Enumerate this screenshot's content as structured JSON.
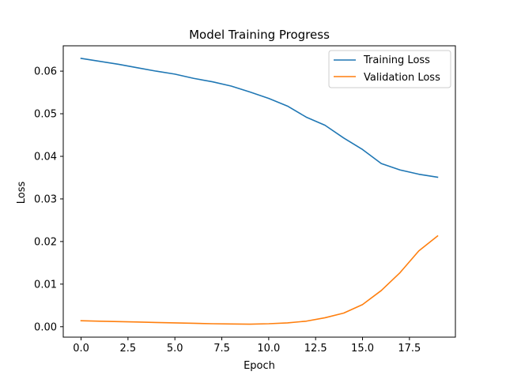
{
  "chart_data": {
    "type": "line",
    "title": "Model Training Progress",
    "xlabel": "Epoch",
    "ylabel": "Loss",
    "xlim": [
      -0.95,
      19.95
    ],
    "ylim": [
      -0.00245,
      0.06595
    ],
    "xticks": [
      0.0,
      2.5,
      5.0,
      7.5,
      10.0,
      12.5,
      15.0,
      17.5
    ],
    "xtick_labels": [
      "0.0",
      "2.5",
      "5.0",
      "7.5",
      "10.0",
      "12.5",
      "15.0",
      "17.5"
    ],
    "yticks": [
      0.0,
      0.01,
      0.02,
      0.03,
      0.04,
      0.05,
      0.06
    ],
    "ytick_labels": [
      "0.00",
      "0.01",
      "0.02",
      "0.03",
      "0.04",
      "0.05",
      "0.06"
    ],
    "grid": false,
    "legend_position": "top-right",
    "x": [
      0,
      1,
      2,
      3,
      4,
      5,
      6,
      7,
      8,
      9,
      10,
      11,
      12,
      13,
      14,
      15,
      16,
      17,
      18,
      19
    ],
    "series": [
      {
        "name": "Training Loss",
        "color": "#1f77b4",
        "values": [
          0.063,
          0.0623,
          0.0616,
          0.0608,
          0.06,
          0.0593,
          0.0583,
          0.0575,
          0.0565,
          0.0551,
          0.0536,
          0.0518,
          0.0492,
          0.0473,
          0.0443,
          0.0416,
          0.0383,
          0.0368,
          0.0358,
          0.0351
        ]
      },
      {
        "name": "Validation Loss",
        "color": "#ff7f0e",
        "values": [
          0.0014,
          0.0013,
          0.0012,
          0.0011,
          0.001,
          0.0009,
          0.0008,
          0.0007,
          0.00065,
          0.0006,
          0.0007,
          0.0009,
          0.0013,
          0.0021,
          0.0032,
          0.0052,
          0.0085,
          0.0127,
          0.0178,
          0.0213
        ]
      }
    ]
  }
}
